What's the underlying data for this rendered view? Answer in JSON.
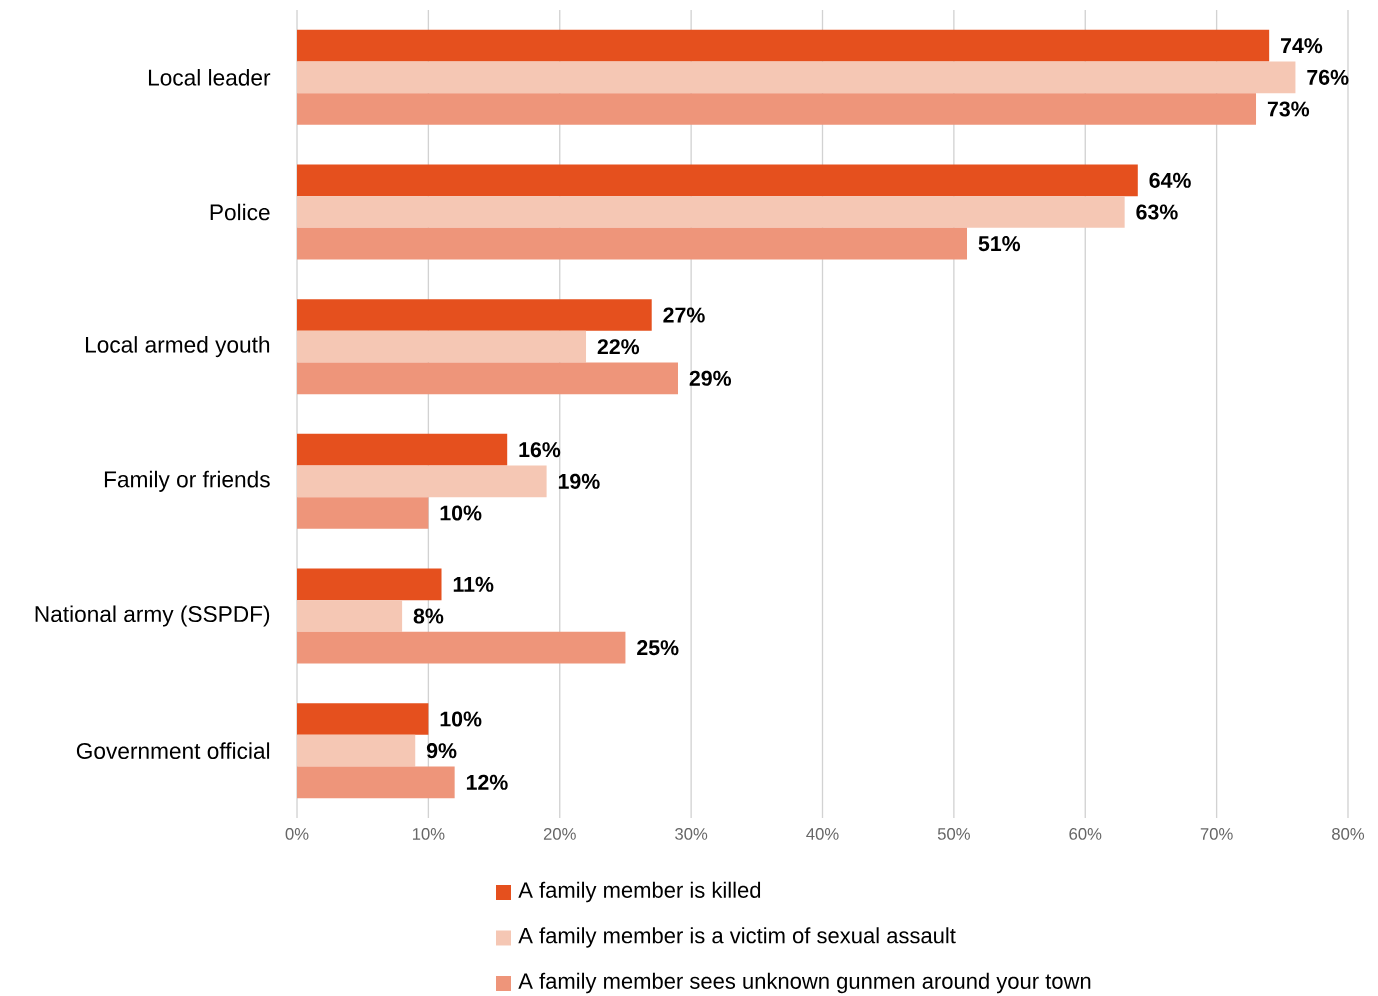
{
  "chart_data": {
    "type": "bar",
    "orientation": "horizontal",
    "categories": [
      "Local leader",
      "Police",
      "Local armed youth",
      "Family or friends",
      "National army (SSPDF)",
      "Government official"
    ],
    "series": [
      {
        "name": "A family member is killed",
        "color": "#e5501e",
        "values": [
          74,
          64,
          27,
          16,
          11,
          10
        ],
        "value_labels": [
          "74%",
          "64%",
          "27%",
          "16%",
          "11%",
          "10%"
        ]
      },
      {
        "name": "A family member is a victim of sexual assault",
        "color": "#f5c7b4",
        "values": [
          76,
          63,
          22,
          19,
          8,
          9
        ],
        "value_labels": [
          "76%",
          "63%",
          "22%",
          "19%",
          "8%",
          "9%"
        ]
      },
      {
        "name": "A family member sees unknown gunmen around your town",
        "color": "#ee957a",
        "values": [
          73,
          51,
          29,
          10,
          25,
          12
        ],
        "value_labels": [
          "73%",
          "51%",
          "29%",
          "10%",
          "25%",
          "12%"
        ]
      }
    ],
    "xlim": [
      0,
      80
    ],
    "xticks": [
      {
        "value": 0,
        "label": "0%"
      },
      {
        "value": 10,
        "label": "10%"
      },
      {
        "value": 20,
        "label": "20%"
      },
      {
        "value": 30,
        "label": "30%"
      },
      {
        "value": 40,
        "label": "40%"
      },
      {
        "value": 50,
        "label": "50%"
      },
      {
        "value": 60,
        "label": "60%"
      },
      {
        "value": 70,
        "label": "70%"
      },
      {
        "value": 80,
        "label": "80%"
      }
    ],
    "grid": "x",
    "legend": "bottom"
  }
}
